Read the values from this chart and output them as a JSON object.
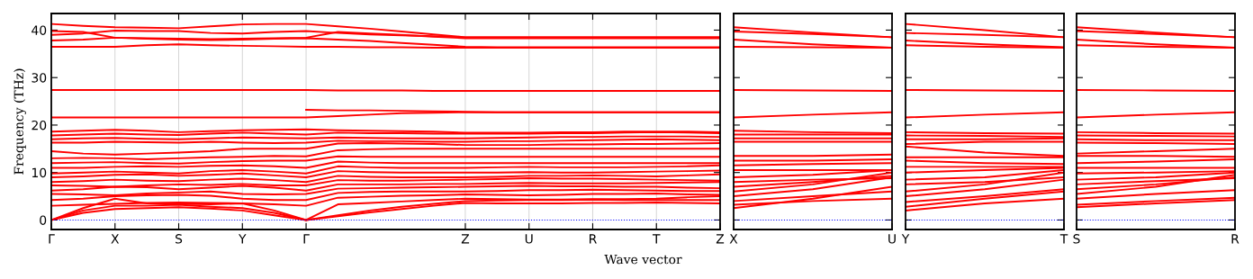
{
  "chart_data": [
    {
      "type": "line",
      "ylabel": "Frequency (THz)",
      "xlabel": "Wave vector",
      "ylim": [
        -2,
        43.5
      ],
      "yticks": [
        0,
        10,
        20,
        30,
        40
      ],
      "categories": [
        "Γ",
        null,
        "X",
        null,
        "S",
        null,
        "Y",
        null,
        "Γ",
        null,
        null,
        null,
        null,
        "Z",
        null,
        "U",
        null,
        "R",
        null,
        "T",
        null,
        "Z"
      ],
      "grid": "x",
      "legend": false,
      "marker": "none",
      "line_style": "solid",
      "ref_lines": [
        {
          "axis": "y",
          "value": 0,
          "label": null,
          "color": "#0000ff",
          "line_style": "dotted"
        }
      ],
      "series": [
        {
          "color": "#ff0000",
          "values": [
            0,
            1.5,
            2.3,
            2.5,
            2.7,
            2.4,
            2.0,
            1.0,
            0,
            0.8,
            1.6,
            2.3,
            3.0,
            3.6,
            3.5,
            3.5,
            3.5,
            3.6,
            3.6,
            3.7,
            3.6,
            3.5
          ]
        },
        {
          "color": "#ff0000",
          "values": [
            0,
            2,
            3,
            3,
            3.2,
            2.8,
            2.5,
            1.5,
            0,
            1.0,
            2.0,
            2.8,
            3.4,
            4,
            4.1,
            4.2,
            4.2,
            4.3,
            4.2,
            4.2,
            4.2,
            4.2
          ]
        },
        {
          "color": "#ff0000",
          "values": [
            0,
            2.5,
            4.5,
            3.5,
            3.4,
            3.3,
            3.5,
            2,
            0,
            3.3,
            3.6,
            3.9,
            4.2,
            4.5,
            4.4,
            4.3,
            4.3,
            4.4,
            4.4,
            4.5,
            4.8,
            5
          ]
        },
        {
          "color": "#ff0000",
          "values": [
            3,
            3.2,
            3.4,
            3.6,
            3.7,
            3.6,
            3.5,
            3.3,
            3,
            4.7,
            4.9,
            5.1,
            5.2,
            5.4,
            5.3,
            5.2,
            5.3,
            5.5,
            5.5,
            5.6,
            5.4,
            5.3
          ]
        },
        {
          "color": "#ff0000",
          "values": [
            4.2,
            4.5,
            5,
            5.2,
            5.3,
            5.1,
            4.5,
            4.2,
            4.2,
            5.7,
            5.9,
            6,
            6,
            6,
            6.1,
            6.3,
            6.3,
            6.4,
            6.3,
            6.2,
            6.1,
            6.1
          ]
        },
        {
          "color": "#ff0000",
          "values": [
            5.5,
            5.4,
            5.2,
            5.6,
            5.8,
            6,
            5.5,
            5.4,
            5.5,
            6.6,
            6.7,
            6.8,
            6.9,
            7,
            7.1,
            7.2,
            7.1,
            7.1,
            7,
            7,
            6.8,
            6.7
          ]
        },
        {
          "color": "#ff0000",
          "values": [
            6.2,
            6.5,
            7,
            6.9,
            6.5,
            6.8,
            7.2,
            6.8,
            6.2,
            7.5,
            7.5,
            7.5,
            7.6,
            7.6,
            7.7,
            7.8,
            7.7,
            7.7,
            7.7,
            7.8,
            7.9,
            8
          ]
        },
        {
          "color": "#ff0000",
          "values": [
            7.3,
            7.2,
            7.0,
            7.3,
            7.5,
            7.4,
            7.6,
            7.3,
            7.3,
            8.4,
            8.3,
            8.3,
            8.4,
            8.5,
            8.6,
            8.8,
            8.7,
            8.7,
            8.6,
            8.5,
            8.4,
            8.3
          ]
        },
        {
          "color": "#ff0000",
          "values": [
            8,
            8.2,
            8.5,
            8.3,
            8.2,
            8.5,
            8.7,
            8.4,
            8,
            9.3,
            9.1,
            9,
            9,
            9,
            9.1,
            9.3,
            9.3,
            9.4,
            9.3,
            9.2,
            9.4,
            9.6
          ]
        },
        {
          "color": "#ff0000",
          "values": [
            9,
            9.2,
            9.5,
            9.6,
            9.3,
            9.5,
            9.8,
            9.4,
            9,
            10.3,
            10.1,
            10,
            10,
            10,
            10,
            10.1,
            10,
            10,
            10.1,
            10.2,
            10.3,
            10.4
          ]
        },
        {
          "color": "#ff0000",
          "values": [
            9.8,
            10,
            10.2,
            10,
            9.8,
            10.3,
            10.5,
            10.2,
            9.8,
            11.3,
            11.1,
            11,
            11,
            11,
            11.1,
            11.2,
            11.1,
            11.1,
            11.1,
            11.2,
            11.3,
            11.5
          ]
        },
        {
          "color": "#ff0000",
          "values": [
            11,
            11,
            11.2,
            11.3,
            11.2,
            11.4,
            11.5,
            11.3,
            11,
            12.3,
            12.1,
            12,
            12,
            12,
            12,
            12,
            12,
            12,
            12,
            12,
            12,
            12
          ]
        },
        {
          "color": "#ff0000",
          "values": [
            12,
            12.1,
            12.2,
            12,
            11.9,
            12.2,
            12.4,
            12.5,
            12.5,
            13.4,
            13.3,
            13.3,
            13.3,
            13.3,
            13.3,
            13.3,
            13.3,
            13.3,
            13.3,
            13.3,
            13.3,
            13.3
          ]
        },
        {
          "color": "#ff0000",
          "values": [
            13,
            13.1,
            13,
            12.8,
            13,
            13.2,
            13.3,
            13.5,
            13.4,
            14.7,
            14.9,
            15,
            15,
            15,
            15,
            15,
            15,
            15,
            15,
            15,
            15,
            15
          ]
        },
        {
          "color": "#ff0000",
          "values": [
            14.5,
            14,
            13.8,
            14,
            14.2,
            14.5,
            15,
            15,
            15,
            16.1,
            16.2,
            16.1,
            16,
            15.8,
            15.8,
            15.8,
            15.9,
            15.9,
            16,
            16,
            16.1,
            16.2
          ]
        },
        {
          "color": "#ff0000",
          "values": [
            16.3,
            16.3,
            16.5,
            16.4,
            16.3,
            16.5,
            16.3,
            16.2,
            16.3,
            16.7,
            16.6,
            16.6,
            16.5,
            16.5,
            16.6,
            16.6,
            16.7,
            16.8,
            16.9,
            17,
            16.9,
            16.8
          ]
        },
        {
          "color": "#ff0000",
          "values": [
            17,
            17.2,
            17.3,
            17.1,
            17.0,
            17.2,
            17.4,
            17.3,
            17.2,
            17.4,
            17.3,
            17.2,
            17.2,
            17.2,
            17.3,
            17.4,
            17.5,
            17.5,
            17.6,
            17.6,
            17.6,
            17.5
          ]
        },
        {
          "color": "#ff0000",
          "values": [
            17.8,
            18,
            18.2,
            18,
            17.9,
            18.2,
            18.4,
            18.2,
            18,
            18.4,
            18.3,
            18.3,
            18.2,
            18.2,
            18.2,
            18.2,
            18.3,
            18.3,
            18.4,
            18.5,
            18.4,
            18.3
          ]
        },
        {
          "color": "#ff0000",
          "values": [
            18.6,
            18.8,
            19,
            18.8,
            18.5,
            18.7,
            18.9,
            19,
            19.1,
            18.9,
            18.8,
            18.7,
            18.6,
            18.4,
            18.4,
            18.4,
            18.5,
            18.5,
            18.6,
            18.6,
            18.6,
            18.5
          ]
        },
        {
          "color": "#ff0000",
          "values": [
            21.6,
            21.6,
            21.6,
            21.6,
            21.6,
            21.6,
            21.6,
            21.6,
            21.6,
            21.9,
            22.2,
            22.5,
            22.6,
            22.7,
            22.7,
            22.7,
            22.7,
            22.7,
            22.7,
            22.7,
            22.7,
            22.7
          ]
        },
        {
          "color": "#ff0000",
          "values": [
            null,
            null,
            null,
            null,
            null,
            null,
            null,
            null,
            23.2,
            23.1,
            23.1,
            23,
            22.9,
            22.8,
            22.7,
            22.7,
            22.7,
            22.7,
            22.7,
            22.7,
            22.7,
            22.7
          ]
        },
        {
          "color": "#ff0000",
          "values": [
            27.4,
            27.4,
            27.4,
            27.4,
            27.4,
            27.4,
            27.4,
            27.4,
            27.4,
            27.3,
            27.3,
            27.3,
            27.2,
            27.2,
            27.2,
            27.2,
            27.2,
            27.2,
            27.2,
            27.2,
            27.2,
            27.2
          ]
        },
        {
          "color": "#ff0000",
          "values": [
            36.5,
            36.5,
            36.5,
            36.8,
            37,
            36.8,
            36.7,
            36.6,
            36.5,
            36.5,
            36.4,
            36.4,
            36.3,
            36.3,
            36.3,
            36.3,
            36.3,
            36.3,
            36.3,
            36.3,
            36.3,
            36.3
          ]
        },
        {
          "color": "#ff0000",
          "values": [
            37.8,
            38,
            38.4,
            38.2,
            38,
            37.9,
            38,
            38.2,
            38.3,
            38.0,
            37.7,
            37.3,
            36.9,
            36.5,
            36.4,
            36.4,
            36.4,
            36.4,
            36.4,
            36.4,
            36.4,
            36.4
          ]
        },
        {
          "color": "#ff0000",
          "values": [
            39,
            39.3,
            39.9,
            39.8,
            39.8,
            39.4,
            39.3,
            39.6,
            39.8,
            39.4,
            39.1,
            38.9,
            38.7,
            38.5,
            38.5,
            38.5,
            38.5,
            38.5,
            38.5,
            38.5,
            38.5,
            38.5
          ]
        },
        {
          "color": "#ff0000",
          "values": [
            39.8,
            39.6,
            38.4,
            38.3,
            38.2,
            38.1,
            38.2,
            38.3,
            38.4,
            39.6,
            39.3,
            39.0,
            38.6,
            38.3,
            38.3,
            38.3,
            38.3,
            38.3,
            38.3,
            38.3,
            38.3,
            38.3
          ]
        },
        {
          "color": "#ff0000",
          "values": [
            41.3,
            40.9,
            40.6,
            40.5,
            40.4,
            40.8,
            41.2,
            41.3,
            41.3,
            40.8,
            40.3,
            39.7,
            39.1,
            38.5,
            38.5,
            38.5,
            38.5,
            38.5,
            38.5,
            38.5,
            38.5,
            38.5
          ]
        }
      ]
    },
    {
      "type": "line",
      "ylim": [
        -2,
        43.5
      ],
      "yticks": [
        0,
        10,
        20,
        30,
        40
      ],
      "tick_labels": "x",
      "categories": [
        "X",
        null,
        "U"
      ],
      "legend": false,
      "marker": "none",
      "line_style": "solid",
      "ref_lines": [
        {
          "axis": "y",
          "value": 0,
          "label": null,
          "color": "#0000ff",
          "line_style": "dotted"
        }
      ],
      "series": [
        {
          "color": "#ff0000",
          "values": [
            2.5,
            4.5,
            7
          ]
        },
        {
          "color": "#ff0000",
          "values": [
            3.2,
            4,
            4.5
          ]
        },
        {
          "color": "#ff0000",
          "values": [
            4,
            5,
            6
          ]
        },
        {
          "color": "#ff0000",
          "values": [
            5,
            6.5,
            9
          ]
        },
        {
          "color": "#ff0000",
          "values": [
            6,
            7.5,
            10
          ]
        },
        {
          "color": "#ff0000",
          "values": [
            7,
            8,
            9.3
          ]
        },
        {
          "color": "#ff0000",
          "values": [
            8,
            8.5,
            8.8
          ]
        },
        {
          "color": "#ff0000",
          "values": [
            9,
            9.5,
            10.5
          ]
        },
        {
          "color": "#ff0000",
          "values": [
            10.5,
            10.5,
            10.5
          ]
        },
        {
          "color": "#ff0000",
          "values": [
            11.5,
            11.8,
            12
          ]
        },
        {
          "color": "#ff0000",
          "values": [
            12.5,
            12.5,
            12.8
          ]
        },
        {
          "color": "#ff0000",
          "values": [
            13.5,
            13.5,
            13.8
          ]
        },
        {
          "color": "#ff0000",
          "values": [
            16.5,
            16.5,
            16.5
          ]
        },
        {
          "color": "#ff0000",
          "values": [
            17.2,
            17.2,
            17.2
          ]
        },
        {
          "color": "#ff0000",
          "values": [
            18,
            18,
            18
          ]
        },
        {
          "color": "#ff0000",
          "values": [
            18.8,
            18.5,
            18.3
          ]
        },
        {
          "color": "#ff0000",
          "values": [
            21.6,
            22.2,
            22.7
          ]
        },
        {
          "color": "#ff0000",
          "values": [
            27.4,
            27.3,
            27.2
          ]
        },
        {
          "color": "#ff0000",
          "values": [
            36.5,
            36.4,
            36.3
          ]
        },
        {
          "color": "#ff0000",
          "values": [
            38,
            37,
            36.3
          ]
        },
        {
          "color": "#ff0000",
          "values": [
            39.7,
            39.2,
            38.5
          ]
        },
        {
          "color": "#ff0000",
          "values": [
            40.6,
            39.5,
            38.5
          ]
        }
      ]
    },
    {
      "type": "line",
      "ylim": [
        -2,
        43.5
      ],
      "yticks": [
        0,
        10,
        20,
        30,
        40
      ],
      "tick_labels": "x",
      "categories": [
        "Y",
        null,
        "T"
      ],
      "legend": false,
      "marker": "none",
      "line_style": "solid",
      "ref_lines": [
        {
          "axis": "y",
          "value": 0,
          "label": null,
          "color": "#0000ff",
          "line_style": "dotted"
        }
      ],
      "series": [
        {
          "color": "#ff0000",
          "values": [
            2,
            3.5,
            4.5
          ]
        },
        {
          "color": "#ff0000",
          "values": [
            2.8,
            4.5,
            6
          ]
        },
        {
          "color": "#ff0000",
          "values": [
            3.8,
            5,
            6.5
          ]
        },
        {
          "color": "#ff0000",
          "values": [
            5,
            6.5,
            8.5
          ]
        },
        {
          "color": "#ff0000",
          "values": [
            6,
            7.5,
            10
          ]
        },
        {
          "color": "#ff0000",
          "values": [
            7.5,
            8,
            9
          ]
        },
        {
          "color": "#ff0000",
          "values": [
            8.5,
            9,
            10.5
          ]
        },
        {
          "color": "#ff0000",
          "values": [
            10,
            10.5,
            11
          ]
        },
        {
          "color": "#ff0000",
          "values": [
            11.2,
            11.2,
            11.2
          ]
        },
        {
          "color": "#ff0000",
          "values": [
            12.5,
            12,
            11.8
          ]
        },
        {
          "color": "#ff0000",
          "values": [
            13.2,
            13.2,
            13.2
          ]
        },
        {
          "color": "#ff0000",
          "values": [
            15.5,
            14.2,
            13.5
          ]
        },
        {
          "color": "#ff0000",
          "values": [
            16,
            16.5,
            16.5
          ]
        },
        {
          "color": "#ff0000",
          "values": [
            17,
            17,
            17.2
          ]
        },
        {
          "color": "#ff0000",
          "values": [
            17.8,
            17.7,
            17.5
          ]
        },
        {
          "color": "#ff0000",
          "values": [
            18.5,
            18.3,
            18.2
          ]
        },
        {
          "color": "#ff0000",
          "values": [
            21.6,
            22.2,
            22.7
          ]
        },
        {
          "color": "#ff0000",
          "values": [
            27.4,
            27.3,
            27.2
          ]
        },
        {
          "color": "#ff0000",
          "values": [
            36.8,
            36.5,
            36.3
          ]
        },
        {
          "color": "#ff0000",
          "values": [
            37.8,
            37,
            36.4
          ]
        },
        {
          "color": "#ff0000",
          "values": [
            39.4,
            39,
            38.5
          ]
        },
        {
          "color": "#ff0000",
          "values": [
            41.3,
            40,
            38.5
          ]
        }
      ]
    },
    {
      "type": "line",
      "ylim": [
        -2,
        43.5
      ],
      "yticks": [
        0,
        10,
        20,
        30,
        40
      ],
      "tick_labels": "x",
      "categories": [
        "S",
        null,
        "R"
      ],
      "legend": false,
      "marker": "none",
      "line_style": "solid",
      "ref_lines": [
        {
          "axis": "y",
          "value": 0,
          "label": null,
          "color": "#0000ff",
          "line_style": "dotted"
        }
      ],
      "series": [
        {
          "color": "#ff0000",
          "values": [
            2.7,
            3.5,
            4.2
          ]
        },
        {
          "color": "#ff0000",
          "values": [
            3.2,
            4,
            4.7
          ]
        },
        {
          "color": "#ff0000",
          "values": [
            4.5,
            5.5,
            6.3
          ]
        },
        {
          "color": "#ff0000",
          "values": [
            5.5,
            7,
            9.5
          ]
        },
        {
          "color": "#ff0000",
          "values": [
            6.5,
            7.5,
            9
          ]
        },
        {
          "color": "#ff0000",
          "values": [
            7.5,
            8.2,
            8.8
          ]
        },
        {
          "color": "#ff0000",
          "values": [
            8.5,
            9,
            10
          ]
        },
        {
          "color": "#ff0000",
          "values": [
            9.8,
            10,
            10.3
          ]
        },
        {
          "color": "#ff0000",
          "values": [
            11,
            11,
            11
          ]
        },
        {
          "color": "#ff0000",
          "values": [
            12,
            12.3,
            12.8
          ]
        },
        {
          "color": "#ff0000",
          "values": [
            13.5,
            13.5,
            13.3
          ]
        },
        {
          "color": "#ff0000",
          "values": [
            14,
            14.5,
            15
          ]
        },
        {
          "color": "#ff0000",
          "values": [
            16.3,
            16.2,
            16
          ]
        },
        {
          "color": "#ff0000",
          "values": [
            17,
            16.8,
            16.8
          ]
        },
        {
          "color": "#ff0000",
          "values": [
            17.8,
            17.7,
            17.6
          ]
        },
        {
          "color": "#ff0000",
          "values": [
            18.5,
            18.3,
            18.2
          ]
        },
        {
          "color": "#ff0000",
          "values": [
            21.6,
            22.2,
            22.7
          ]
        },
        {
          "color": "#ff0000",
          "values": [
            27.4,
            27.3,
            27.2
          ]
        },
        {
          "color": "#ff0000",
          "values": [
            36.8,
            36.5,
            36.3
          ]
        },
        {
          "color": "#ff0000",
          "values": [
            38,
            37,
            36.3
          ]
        },
        {
          "color": "#ff0000",
          "values": [
            39.8,
            39.2,
            38.5
          ]
        },
        {
          "color": "#ff0000",
          "values": [
            40.6,
            39.5,
            38.5
          ]
        }
      ]
    }
  ]
}
